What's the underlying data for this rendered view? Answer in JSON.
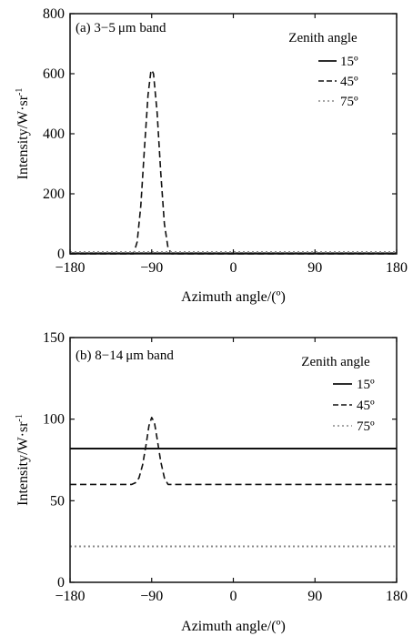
{
  "chart_data": [
    {
      "type": "line",
      "title": "(a) 3−5 μm band",
      "xlabel": "Azimuth angle/(º)",
      "ylabel": "Intensity/W·sr",
      "ylabel_superscript": "-1",
      "xlim": [
        -180,
        180
      ],
      "ylim": [
        0,
        800
      ],
      "xticks": [
        "−180",
        "−90",
        "0",
        "90",
        "180"
      ],
      "xtick_values": [
        -180,
        -90,
        0,
        90,
        180
      ],
      "yticks": [
        "0",
        "200",
        "400",
        "600",
        "800"
      ],
      "ytick_values": [
        0,
        200,
        400,
        600,
        800
      ],
      "legend_title": "Zenith angle",
      "legend_position": "top-right",
      "series": [
        {
          "name": "15º",
          "style": "solid",
          "color": "#111111",
          "x": [
            -180,
            180
          ],
          "y": [
            2,
            2
          ]
        },
        {
          "name": "45º",
          "style": "dashed",
          "color": "#111111",
          "x": [
            -180,
            -110,
            -106,
            -102,
            -98,
            -94,
            -91,
            -90,
            -88,
            -84,
            -80,
            -76,
            -72,
            -68,
            -64,
            180
          ],
          "y": [
            0,
            0,
            40,
            160,
            350,
            530,
            605,
            612,
            600,
            470,
            270,
            100,
            20,
            0,
            0,
            0
          ]
        },
        {
          "name": "75º",
          "style": "dotted",
          "color": "#888888",
          "x": [
            -180,
            180
          ],
          "y": [
            6,
            6
          ]
        }
      ]
    },
    {
      "type": "line",
      "title": "(b) 8−14 μm band",
      "xlabel": "Azimuth angle/(º)",
      "ylabel": "Intensity/W·sr",
      "ylabel_superscript": "-1",
      "xlim": [
        -180,
        180
      ],
      "ylim": [
        0,
        150
      ],
      "xticks": [
        "−180",
        "−90",
        "0",
        "90",
        "180"
      ],
      "xtick_values": [
        -180,
        -90,
        0,
        90,
        180
      ],
      "yticks": [
        "0",
        "50",
        "100",
        "150"
      ],
      "ytick_values": [
        0,
        50,
        100,
        150
      ],
      "legend_title": "Zenith angle",
      "legend_position": "top-right",
      "series": [
        {
          "name": "15º",
          "style": "solid",
          "color": "#111111",
          "x": [
            -180,
            180
          ],
          "y": [
            82,
            82
          ]
        },
        {
          "name": "45º",
          "style": "dashed",
          "color": "#111111",
          "x": [
            -180,
            -112,
            -108,
            -104,
            -100,
            -96,
            -93,
            -90,
            -87,
            -84,
            -80,
            -76,
            -72,
            -68,
            180
          ],
          "y": [
            60,
            60,
            61,
            64,
            72,
            85,
            96,
            101,
            98,
            88,
            74,
            64,
            60,
            60,
            60
          ]
        },
        {
          "name": "75º",
          "style": "dotted",
          "color": "#888888",
          "x": [
            -180,
            180
          ],
          "y": [
            22,
            22
          ]
        }
      ]
    }
  ]
}
